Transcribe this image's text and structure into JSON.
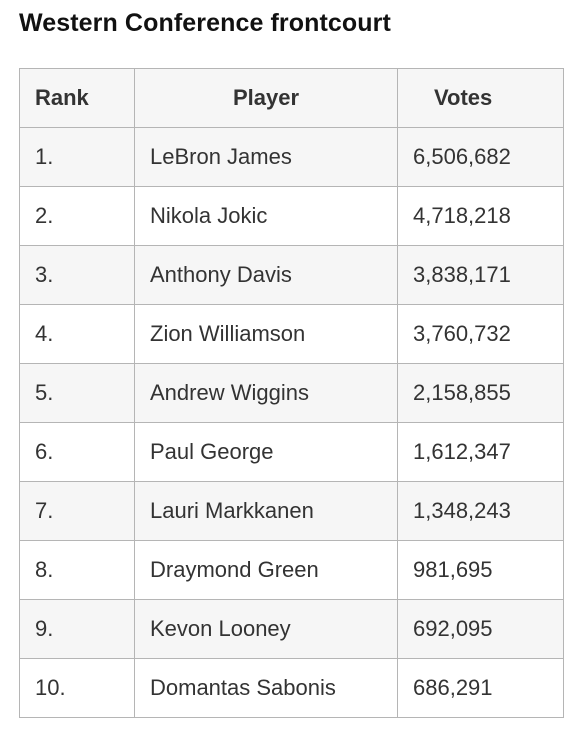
{
  "title": "Western Conference frontcourt",
  "table": {
    "headers": {
      "rank": "Rank",
      "player": "Player",
      "votes": "Votes"
    },
    "rows": [
      {
        "rank": "1.",
        "player": "LeBron James",
        "votes": "6,506,682"
      },
      {
        "rank": "2.",
        "player": "Nikola Jokic",
        "votes": "4,718,218"
      },
      {
        "rank": "3.",
        "player": "Anthony Davis",
        "votes": "3,838,171"
      },
      {
        "rank": "4.",
        "player": "Zion Williamson",
        "votes": "3,760,732"
      },
      {
        "rank": "5.",
        "player": "Andrew Wiggins",
        "votes": "2,158,855"
      },
      {
        "rank": "6.",
        "player": "Paul George",
        "votes": "1,612,347"
      },
      {
        "rank": "7.",
        "player": "Lauri Markkanen",
        "votes": "1,348,243"
      },
      {
        "rank": "8.",
        "player": "Draymond Green",
        "votes": "981,695"
      },
      {
        "rank": "9.",
        "player": "Kevon Looney",
        "votes": "692,095"
      },
      {
        "rank": "10.",
        "player": "Domantas Sabonis",
        "votes": "686,291"
      }
    ]
  }
}
